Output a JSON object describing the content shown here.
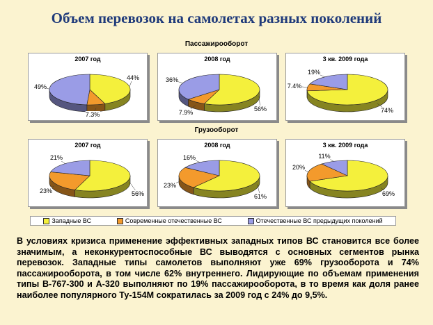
{
  "title": "Объем перевозок на самолетах разных поколений",
  "sections": {
    "passenger": "Пассажирооборот",
    "cargo": "Грузооборот"
  },
  "colors": {
    "western": "#f4f03c",
    "modern": "#f39a2c",
    "previous": "#9a9ce6"
  },
  "legend": [
    {
      "name": "Западные ВС",
      "color": "#f4f03c"
    },
    {
      "name": "Современные отечественные ВС",
      "color": "#f39a2c"
    },
    {
      "name": "Отечественные ВС предыдущих поколений",
      "color": "#9a9ce6"
    }
  ],
  "chart_data": [
    {
      "type": "pie",
      "group": "Пассажирооборот",
      "title": "2007 год",
      "slices": [
        {
          "label": "44%",
          "value": 44
        },
        {
          "label": "7.3%",
          "value": 7.3
        },
        {
          "label": "49%",
          "value": 49
        }
      ]
    },
    {
      "type": "pie",
      "group": "Пассажирооборот",
      "title": "2008 год",
      "slices": [
        {
          "label": "56%",
          "value": 56
        },
        {
          "label": "7.9%",
          "value": 7.9
        },
        {
          "label": "36%",
          "value": 36
        }
      ]
    },
    {
      "type": "pie",
      "group": "Пассажирооборот",
      "title": "3 кв. 2009 года",
      "slices": [
        {
          "label": "74%",
          "value": 74
        },
        {
          "label": "7.4%",
          "value": 7.4
        },
        {
          "label": "19%",
          "value": 19
        }
      ]
    },
    {
      "type": "pie",
      "group": "Грузооборот",
      "title": "2007 год",
      "slices": [
        {
          "label": "56%",
          "value": 56
        },
        {
          "label": "23%",
          "value": 23
        },
        {
          "label": "21%",
          "value": 21
        }
      ]
    },
    {
      "type": "pie",
      "group": "Грузооборот",
      "title": "2008 год",
      "slices": [
        {
          "label": "61%",
          "value": 61
        },
        {
          "label": "23%",
          "value": 23
        },
        {
          "label": "16%",
          "value": 16
        }
      ]
    },
    {
      "type": "pie",
      "group": "Грузооборот",
      "title": "3 кв. 2009 года",
      "slices": [
        {
          "label": "69%",
          "value": 69
        },
        {
          "label": "20%",
          "value": 20
        },
        {
          "label": "11%",
          "value": 11
        }
      ]
    }
  ],
  "text": {
    "paragraph": "В условиях кризиса применение эффективных западных типов ВС становится все более значимым, а неконкурентоспособные ВС выводятся с основных сегментов рынка перевозок. Западные типы самолетов выполняют уже 69% грузооборота и 74% пассажирооборота, в том числе 62% внутреннего. Лидирующие по объемам применения типы В-767-300 и А-320 выполняют по 19% пассажирооборота, в то время как доля ранее наиболее популярного Ту-154М сократилась за 2009 год с 24% до 9,5%."
  }
}
